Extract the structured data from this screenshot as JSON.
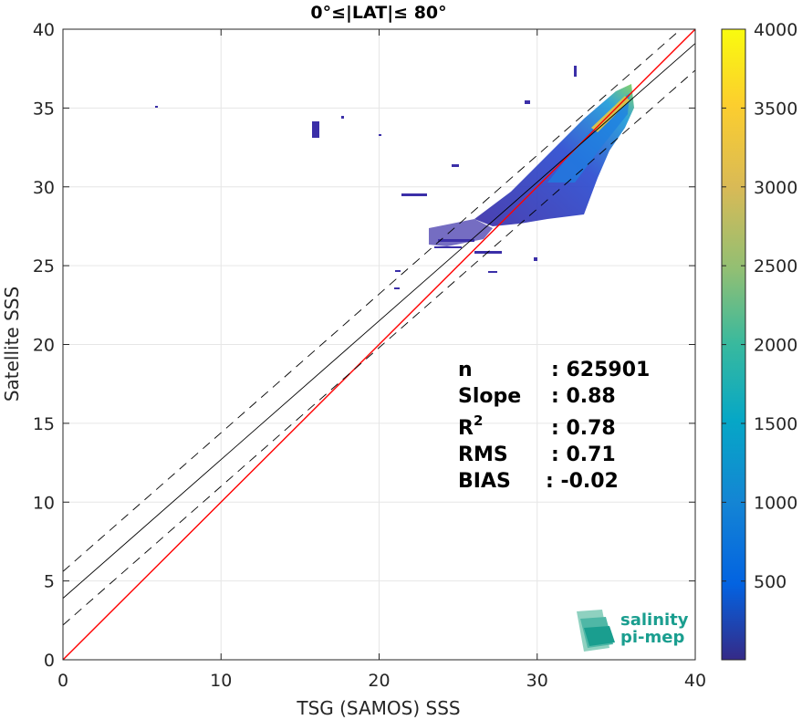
{
  "chart_data": {
    "type": "heatmap",
    "title": "0°≤|LAT|≤ 80°",
    "xlabel": "TSG (SAMOS) SSS",
    "ylabel": "Satellite SSS",
    "xlim": [
      0,
      40
    ],
    "ylim": [
      0,
      40
    ],
    "x_ticks": [
      "0",
      "10",
      "20",
      "30",
      "40"
    ],
    "y_ticks": [
      "0",
      "5",
      "10",
      "15",
      "20",
      "25",
      "30",
      "35",
      "40"
    ],
    "grid": true,
    "colorbar": {
      "range": [
        1,
        4000
      ],
      "ticks": [
        "500",
        "1000",
        "1500",
        "2000",
        "2500",
        "3000",
        "3500",
        "4000"
      ],
      "colormap": "parula"
    },
    "lines": [
      {
        "name": "identity",
        "slope": 1.0,
        "intercept": 0.0,
        "color": "#ff0000",
        "style": "solid"
      },
      {
        "name": "fit",
        "slope": 0.88,
        "intercept": 3.9,
        "color": "#000000",
        "style": "solid"
      },
      {
        "name": "fit-plus",
        "slope": 0.88,
        "intercept": 5.6,
        "color": "#000000",
        "style": "dashed"
      },
      {
        "name": "fit-minus",
        "slope": 0.88,
        "intercept": 2.2,
        "color": "#000000",
        "style": "dashed"
      }
    ],
    "stats": [
      {
        "label": "n",
        "value": ": 625901"
      },
      {
        "label": "Slope",
        "value": ": 0.88"
      },
      {
        "label": "R",
        "sup": "2",
        "value": ": 0.78"
      },
      {
        "label": "RMS",
        "value": ": 0.71"
      },
      {
        "label": "BIAS",
        "value": ": -0.02"
      }
    ],
    "density_clusters": [
      {
        "x": 16.0,
        "y": 33.6
      },
      {
        "x": 17.6,
        "y": 34.4
      },
      {
        "x": 5.9,
        "y": 35.1
      },
      {
        "x": 20.0,
        "y": 33.2
      },
      {
        "x": 33.0,
        "y": 32.0
      },
      {
        "x": 30.5,
        "y": 28.0
      },
      {
        "x": 27.0,
        "y": 30.0
      }
    ]
  },
  "logo": {
    "line1": "salinity",
    "line2": "pi-mep"
  },
  "colors": {
    "accent": "#1a9e8f"
  }
}
